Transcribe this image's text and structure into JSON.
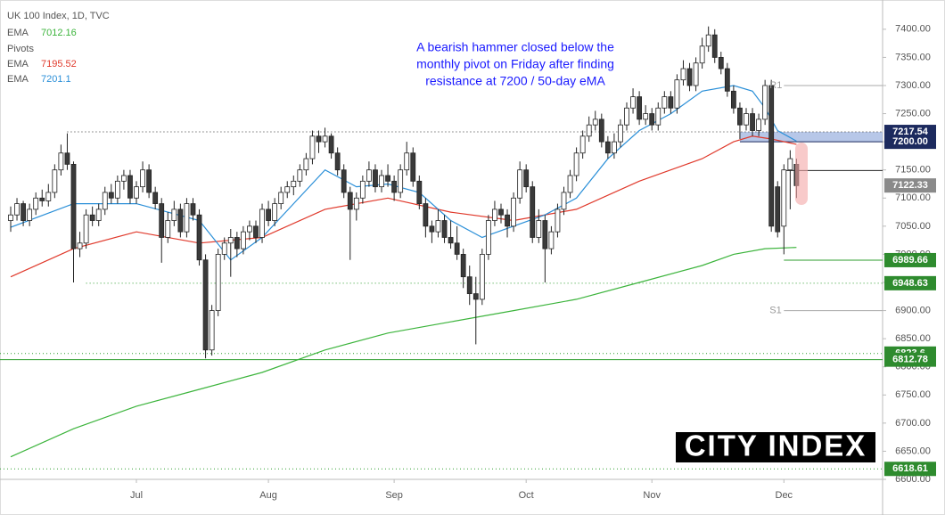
{
  "chart_data": {
    "type": "candlestick",
    "title": "UK 100 Index, 1D, TVC",
    "legend_pivots": "Pivots",
    "annotation": [
      "A bearish hammer closed below the",
      "monthly pivot on Friday after finding",
      "resistance at 7200 / 50-day eMA"
    ],
    "logo": "CITY INDEX",
    "xlim": [
      -1.7,
      138.7
    ],
    "xticks": [
      {
        "value": 20,
        "label": "Jul"
      },
      {
        "value": 41,
        "label": "Aug"
      },
      {
        "value": 61,
        "label": "Sep"
      },
      {
        "value": 82,
        "label": "Oct"
      },
      {
        "value": 102,
        "label": "Nov"
      },
      {
        "value": 123,
        "label": "Dec"
      }
    ],
    "ylim": [
      6600,
      7452
    ],
    "yticks": [
      {
        "value": 6600,
        "label": "6600.00"
      },
      {
        "value": 6650,
        "label": "6650.00"
      },
      {
        "value": 6700,
        "label": "6700.00"
      },
      {
        "value": 6750,
        "label": "6750.00"
      },
      {
        "value": 6800,
        "label": "6800.00"
      },
      {
        "value": 6850,
        "label": "6850.00"
      },
      {
        "value": 6900,
        "label": "6900.00"
      },
      {
        "value": 6950,
        "label": "6950.00"
      },
      {
        "value": 7000,
        "label": "7000.00"
      },
      {
        "value": 7050,
        "label": "7050.00"
      },
      {
        "value": 7100,
        "label": "7100.00"
      },
      {
        "value": 7150,
        "label": "7150.00"
      },
      {
        "value": 7200,
        "label": "7200.00"
      },
      {
        "value": 7250,
        "label": "7250.00"
      },
      {
        "value": 7300,
        "label": "7300.00"
      },
      {
        "value": 7350,
        "label": "7350.00"
      },
      {
        "value": 7400,
        "label": "7400.00"
      }
    ],
    "grid": false,
    "up_color": "#ffffff",
    "down_color": "#3a3a3a",
    "outline_color": "#222222",
    "candles": [
      [
        7060,
        7085,
        7040,
        7070
      ],
      [
        7070,
        7100,
        7060,
        7090
      ],
      [
        7090,
        7095,
        7050,
        7060
      ],
      [
        7060,
        7090,
        7050,
        7080
      ],
      [
        7080,
        7110,
        7070,
        7100
      ],
      [
        7100,
        7115,
        7085,
        7095
      ],
      [
        7095,
        7125,
        7085,
        7110
      ],
      [
        7110,
        7160,
        7100,
        7150
      ],
      [
        7150,
        7195,
        7140,
        7180
      ],
      [
        7180,
        7215,
        7150,
        7160
      ],
      [
        7160,
        7165,
        6950,
        7010
      ],
      [
        7010,
        7040,
        6995,
        7020
      ],
      [
        7020,
        7080,
        7010,
        7070
      ],
      [
        7070,
        7085,
        7050,
        7060
      ],
      [
        7060,
        7090,
        7050,
        7080
      ],
      [
        7080,
        7120,
        7070,
        7110
      ],
      [
        7110,
        7125,
        7090,
        7100
      ],
      [
        7100,
        7140,
        7090,
        7130
      ],
      [
        7130,
        7150,
        7115,
        7140
      ],
      [
        7140,
        7150,
        7090,
        7100
      ],
      [
        7100,
        7130,
        7090,
        7120
      ],
      [
        7120,
        7165,
        7110,
        7150
      ],
      [
        7150,
        7160,
        7100,
        7110
      ],
      [
        7110,
        7120,
        7080,
        7090
      ],
      [
        7090,
        7100,
        6985,
        7030
      ],
      [
        7030,
        7075,
        7020,
        7060
      ],
      [
        7060,
        7095,
        7050,
        7080
      ],
      [
        7080,
        7090,
        7030,
        7040
      ],
      [
        7040,
        7100,
        7030,
        7090
      ],
      [
        7090,
        7100,
        7060,
        7070
      ],
      [
        7070,
        7080,
        6980,
        6990
      ],
      [
        6990,
        7000,
        6815,
        6830
      ],
      [
        6830,
        6910,
        6820,
        6900
      ],
      [
        6900,
        7010,
        6890,
        7000
      ],
      [
        7000,
        7030,
        6990,
        7020
      ],
      [
        7020,
        7045,
        6960,
        7030
      ],
      [
        7030,
        7040,
        6995,
        7010
      ],
      [
        7010,
        7050,
        7000,
        7040
      ],
      [
        7040,
        7060,
        7025,
        7050
      ],
      [
        7050,
        7060,
        7020,
        7030
      ],
      [
        7030,
        7090,
        7020,
        7080
      ],
      [
        7080,
        7095,
        7050,
        7060
      ],
      [
        7060,
        7100,
        7050,
        7090
      ],
      [
        7090,
        7120,
        7080,
        7110
      ],
      [
        7110,
        7130,
        7100,
        7120
      ],
      [
        7120,
        7140,
        7105,
        7130
      ],
      [
        7130,
        7160,
        7120,
        7150
      ],
      [
        7150,
        7180,
        7140,
        7170
      ],
      [
        7170,
        7220,
        7160,
        7210
      ],
      [
        7210,
        7220,
        7180,
        7200
      ],
      [
        7200,
        7225,
        7190,
        7210
      ],
      [
        7210,
        7215,
        7170,
        7180
      ],
      [
        7180,
        7190,
        7140,
        7150
      ],
      [
        7150,
        7160,
        7100,
        7110
      ],
      [
        7110,
        7120,
        6990,
        7080
      ],
      [
        7080,
        7110,
        7060,
        7100
      ],
      [
        7100,
        7140,
        7090,
        7130
      ],
      [
        7130,
        7165,
        7120,
        7150
      ],
      [
        7150,
        7160,
        7110,
        7120
      ],
      [
        7120,
        7150,
        7110,
        7140
      ],
      [
        7140,
        7160,
        7120,
        7130
      ],
      [
        7130,
        7140,
        7095,
        7110
      ],
      [
        7110,
        7160,
        7100,
        7150
      ],
      [
        7150,
        7200,
        7140,
        7180
      ],
      [
        7180,
        7190,
        7120,
        7130
      ],
      [
        7130,
        7140,
        7080,
        7090
      ],
      [
        7090,
        7100,
        7030,
        7050
      ],
      [
        7050,
        7060,
        7020,
        7040
      ],
      [
        7040,
        7080,
        7030,
        7060
      ],
      [
        7060,
        7070,
        7020,
        7030
      ],
      [
        7030,
        7060,
        7010,
        7020
      ],
      [
        7020,
        7050,
        6990,
        7000
      ],
      [
        7000,
        7010,
        6940,
        6960
      ],
      [
        6960,
        6980,
        6910,
        6930
      ],
      [
        6930,
        6960,
        6840,
        6920
      ],
      [
        6920,
        7010,
        6910,
        7000
      ],
      [
        7000,
        7070,
        6990,
        7060
      ],
      [
        7060,
        7095,
        7050,
        7080
      ],
      [
        7080,
        7090,
        7055,
        7070
      ],
      [
        7070,
        7080,
        7030,
        7050
      ],
      [
        7050,
        7110,
        7040,
        7100
      ],
      [
        7100,
        7165,
        7090,
        7150
      ],
      [
        7150,
        7160,
        7110,
        7120
      ],
      [
        7120,
        7130,
        7020,
        7030
      ],
      [
        7030,
        7080,
        7020,
        7060
      ],
      [
        7060,
        7070,
        6950,
        7010
      ],
      [
        7010,
        7050,
        7000,
        7040
      ],
      [
        7040,
        7090,
        7030,
        7080
      ],
      [
        7080,
        7120,
        7070,
        7110
      ],
      [
        7110,
        7150,
        7100,
        7140
      ],
      [
        7140,
        7190,
        7130,
        7180
      ],
      [
        7180,
        7220,
        7170,
        7210
      ],
      [
        7210,
        7245,
        7200,
        7230
      ],
      [
        7230,
        7255,
        7220,
        7240
      ],
      [
        7240,
        7250,
        7190,
        7200
      ],
      [
        7200,
        7210,
        7170,
        7180
      ],
      [
        7180,
        7215,
        7170,
        7200
      ],
      [
        7200,
        7240,
        7190,
        7230
      ],
      [
        7230,
        7270,
        7220,
        7260
      ],
      [
        7260,
        7295,
        7250,
        7280
      ],
      [
        7280,
        7290,
        7230,
        7240
      ],
      [
        7240,
        7265,
        7230,
        7250
      ],
      [
        7250,
        7260,
        7220,
        7230
      ],
      [
        7230,
        7270,
        7220,
        7260
      ],
      [
        7260,
        7290,
        7250,
        7280
      ],
      [
        7280,
        7290,
        7250,
        7260
      ],
      [
        7260,
        7320,
        7250,
        7310
      ],
      [
        7310,
        7345,
        7300,
        7330
      ],
      [
        7330,
        7340,
        7290,
        7300
      ],
      [
        7300,
        7350,
        7290,
        7340
      ],
      [
        7340,
        7385,
        7330,
        7370
      ],
      [
        7370,
        7405,
        7360,
        7390
      ],
      [
        7390,
        7400,
        7340,
        7350
      ],
      [
        7350,
        7360,
        7320,
        7330
      ],
      [
        7330,
        7340,
        7280,
        7290
      ],
      [
        7290,
        7300,
        7250,
        7260
      ],
      [
        7260,
        7270,
        7205,
        7230
      ],
      [
        7230,
        7260,
        7220,
        7250
      ],
      [
        7250,
        7260,
        7210,
        7220
      ],
      [
        7220,
        7250,
        7210,
        7240
      ],
      [
        7240,
        7310,
        7230,
        7300
      ],
      [
        7300,
        7310,
        7040,
        7050
      ],
      [
        7120,
        7130,
        7030,
        7040
      ],
      [
        7050,
        7160,
        7000,
        7150
      ],
      [
        7150,
        7185,
        7080,
        7170
      ],
      [
        7160,
        7170,
        7100,
        7122
      ]
    ],
    "series": [
      {
        "name": "EMA",
        "color": "#3cb43c",
        "x": [
          0,
          10,
          20,
          30,
          40,
          50,
          60,
          70,
          80,
          90,
          100,
          110,
          115,
          120,
          125
        ],
        "values": [
          6640,
          6690,
          6730,
          6760,
          6790,
          6830,
          6860,
          6880,
          6900,
          6920,
          6950,
          6980,
          7000,
          7010,
          7012.16
        ]
      },
      {
        "name": "EMA",
        "color": "#e0392b",
        "x": [
          0,
          10,
          20,
          30,
          40,
          50,
          60,
          70,
          80,
          90,
          100,
          110,
          115,
          118,
          121,
          125
        ],
        "values": [
          6960,
          7010,
          7040,
          7020,
          7030,
          7080,
          7100,
          7075,
          7060,
          7080,
          7130,
          7170,
          7200,
          7210,
          7205,
          7195.52
        ]
      },
      {
        "name": "EMA",
        "color": "#2a8fd8",
        "x": [
          0,
          10,
          20,
          30,
          35,
          40,
          45,
          50,
          55,
          60,
          65,
          70,
          75,
          80,
          85,
          90,
          95,
          100,
          105,
          110,
          115,
          118,
          120,
          122,
          125
        ],
        "values": [
          7048,
          7090,
          7090,
          7060,
          6990,
          7030,
          7090,
          7150,
          7120,
          7125,
          7110,
          7060,
          7030,
          7050,
          7070,
          7100,
          7170,
          7220,
          7250,
          7290,
          7300,
          7290,
          7260,
          7220,
          7201.1
        ]
      }
    ],
    "levels": [
      {
        "value": 7217.54,
        "x_from": 9,
        "line_color": "#333333",
        "dash": "1,3",
        "box_color": "#1c2a5e"
      },
      {
        "value": 7200,
        "label": "7200.00",
        "x_from": 116,
        "line_color": "#1c2a5e",
        "dash": "",
        "box_color": "#1c2a5e"
      },
      {
        "value": 7122.33,
        "box_color": "#8a8a8a"
      },
      {
        "value": 7149,
        "x_from": 123,
        "line_color": "#222222",
        "dash": ""
      },
      {
        "value": 6989.66,
        "x_from": 123,
        "line_color": "#2e9e2e",
        "dash": "",
        "box_color": "#2e8b2e"
      },
      {
        "value": 6948.63,
        "x_from": 12,
        "line_color": "#2e9e2e",
        "dash": "1,3",
        "box_color": "#2e8b2e"
      },
      {
        "value": 6823.6,
        "x_from": -1.7,
        "line_color": "#2e9e2e",
        "dash": "1,3",
        "box_color": "#2e8b2e"
      },
      {
        "value": 6812.78,
        "x_from": -1.7,
        "line_color": "#2e9e2e",
        "dash": "",
        "box_color": "#2e8b2e"
      },
      {
        "value": 6618.61,
        "x_from": -1.7,
        "line_color": "#2e9e2e",
        "dash": "1,3",
        "box_color": "#2e8b2e"
      }
    ],
    "zone": {
      "from_level": 1,
      "to_level": 0,
      "x_from": 116,
      "color": "#9fb4e0"
    },
    "pivots": [
      {
        "name": "R1",
        "value": 7300,
        "x_from": 123
      },
      {
        "name": "S1",
        "value": 6900,
        "x_from": 123
      }
    ]
  }
}
